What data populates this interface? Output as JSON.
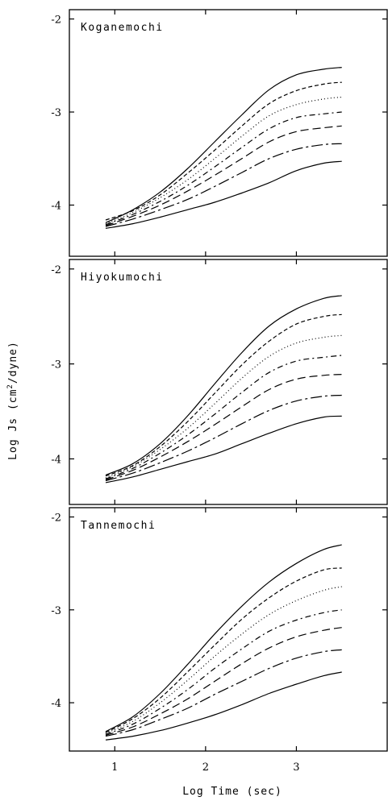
{
  "chart_data": [
    {
      "type": "line",
      "title": "Koganemochi",
      "xlabel": "Log Time (sec)",
      "ylabel": "Log Js (cm2/dyne)",
      "xlim": [
        0.5,
        4.0
      ],
      "ylim": [
        -4.55,
        -1.9
      ],
      "yticks": [
        -4,
        -3,
        -2
      ],
      "ytick_labels": [
        "-4",
        "-3",
        "-2"
      ],
      "xticks": [
        1,
        2,
        3
      ],
      "grid": false,
      "series": [
        {
          "dash": "",
          "x": [
            0.9,
            1.2,
            1.5,
            1.8,
            2.1,
            2.4,
            2.7,
            3.0,
            3.3,
            3.5
          ],
          "y": [
            -4.25,
            -4.2,
            -4.13,
            -4.05,
            -3.97,
            -3.87,
            -3.76,
            -3.63,
            -3.55,
            -3.53
          ]
        },
        {
          "dash": "14,4,3,4",
          "x": [
            0.9,
            1.2,
            1.5,
            1.8,
            2.1,
            2.4,
            2.7,
            3.0,
            3.3,
            3.5
          ],
          "y": [
            -4.23,
            -4.15,
            -4.05,
            -3.94,
            -3.8,
            -3.65,
            -3.5,
            -3.4,
            -3.35,
            -3.34
          ]
        },
        {
          "dash": "10,5",
          "x": [
            0.9,
            1.2,
            1.5,
            1.8,
            2.1,
            2.4,
            2.7,
            3.0,
            3.3,
            3.5
          ],
          "y": [
            -4.22,
            -4.12,
            -4.0,
            -3.85,
            -3.68,
            -3.5,
            -3.32,
            -3.21,
            -3.17,
            -3.15
          ]
        },
        {
          "dash": "7,4,2,4",
          "x": [
            0.9,
            1.2,
            1.5,
            1.8,
            2.1,
            2.4,
            2.7,
            3.0,
            3.3,
            3.5
          ],
          "y": [
            -4.21,
            -4.1,
            -3.96,
            -3.79,
            -3.59,
            -3.38,
            -3.18,
            -3.06,
            -3.02,
            -3.0
          ]
        },
        {
          "dash": "1,3",
          "x": [
            0.9,
            1.2,
            1.5,
            1.8,
            2.1,
            2.4,
            2.7,
            3.0,
            3.3,
            3.5
          ],
          "y": [
            -4.2,
            -4.08,
            -3.92,
            -3.73,
            -3.5,
            -3.26,
            -3.04,
            -2.92,
            -2.86,
            -2.84
          ]
        },
        {
          "dash": "5,3",
          "x": [
            0.9,
            1.2,
            1.5,
            1.8,
            2.1,
            2.4,
            2.7,
            3.0,
            3.3,
            3.5
          ],
          "y": [
            -4.16,
            -4.06,
            -3.89,
            -3.66,
            -3.41,
            -3.15,
            -2.91,
            -2.77,
            -2.7,
            -2.68
          ]
        },
        {
          "dash": "",
          "x": [
            0.9,
            1.2,
            1.5,
            1.8,
            2.1,
            2.4,
            2.7,
            3.0,
            3.3,
            3.5
          ],
          "y": [
            -4.19,
            -4.05,
            -3.86,
            -3.61,
            -3.32,
            -3.03,
            -2.76,
            -2.6,
            -2.54,
            -2.52
          ]
        }
      ]
    },
    {
      "type": "line",
      "title": "Hiyokumochi",
      "xlabel": "Log Time (sec)",
      "ylabel": "Log Js (cm2/dyne)",
      "xlim": [
        0.5,
        4.0
      ],
      "ylim": [
        -4.48,
        -1.9
      ],
      "yticks": [
        -4,
        -3,
        -2
      ],
      "ytick_labels": [
        "-4",
        "-3",
        "-2"
      ],
      "xticks": [
        1,
        2,
        3
      ],
      "grid": false,
      "series": [
        {
          "dash": "",
          "x": [
            0.9,
            1.2,
            1.5,
            1.8,
            2.1,
            2.4,
            2.7,
            3.0,
            3.3,
            3.5
          ],
          "y": [
            -4.25,
            -4.19,
            -4.11,
            -4.03,
            -3.95,
            -3.84,
            -3.73,
            -3.63,
            -3.56,
            -3.55
          ]
        },
        {
          "dash": "14,4,3,4",
          "x": [
            0.9,
            1.2,
            1.5,
            1.8,
            2.1,
            2.4,
            2.7,
            3.0,
            3.3,
            3.5
          ],
          "y": [
            -4.23,
            -4.15,
            -4.04,
            -3.92,
            -3.78,
            -3.63,
            -3.49,
            -3.39,
            -3.34,
            -3.33
          ]
        },
        {
          "dash": "10,5",
          "x": [
            0.9,
            1.2,
            1.5,
            1.8,
            2.1,
            2.4,
            2.7,
            3.0,
            3.3,
            3.5
          ],
          "y": [
            -4.22,
            -4.12,
            -3.98,
            -3.82,
            -3.64,
            -3.45,
            -3.27,
            -3.16,
            -3.12,
            -3.11
          ]
        },
        {
          "dash": "7,4,2,4",
          "x": [
            0.9,
            1.2,
            1.5,
            1.8,
            2.1,
            2.4,
            2.7,
            3.0,
            3.3,
            3.5
          ],
          "y": [
            -4.21,
            -4.1,
            -3.94,
            -3.75,
            -3.53,
            -3.3,
            -3.09,
            -2.97,
            -2.93,
            -2.91
          ]
        },
        {
          "dash": "1,3",
          "x": [
            0.9,
            1.2,
            1.5,
            1.8,
            2.1,
            2.4,
            2.7,
            3.0,
            3.3,
            3.5
          ],
          "y": [
            -4.2,
            -4.08,
            -3.9,
            -3.68,
            -3.42,
            -3.15,
            -2.92,
            -2.78,
            -2.72,
            -2.7
          ]
        },
        {
          "dash": "5,3",
          "x": [
            0.9,
            1.2,
            1.5,
            1.8,
            2.1,
            2.4,
            2.7,
            3.0,
            3.3,
            3.5
          ],
          "y": [
            -4.18,
            -4.07,
            -3.87,
            -3.61,
            -3.31,
            -3.01,
            -2.76,
            -2.58,
            -2.5,
            -2.48
          ]
        },
        {
          "dash": "",
          "x": [
            0.9,
            1.2,
            1.5,
            1.8,
            2.1,
            2.4,
            2.7,
            3.0,
            3.3,
            3.5
          ],
          "y": [
            -4.17,
            -4.05,
            -3.84,
            -3.55,
            -3.21,
            -2.88,
            -2.6,
            -2.42,
            -2.31,
            -2.28
          ]
        }
      ]
    },
    {
      "type": "line",
      "title": "Tannemochi",
      "xlabel": "Log Time (sec)",
      "ylabel": "Log Js (cm2/dyne)",
      "xlim": [
        0.5,
        4.0
      ],
      "ylim": [
        -4.52,
        -1.9
      ],
      "yticks": [
        -4,
        -3,
        -2
      ],
      "ytick_labels": [
        "-4",
        "-3",
        "-2"
      ],
      "xticks": [
        1,
        2,
        3
      ],
      "xtick_labels": [
        "1",
        "2",
        "3"
      ],
      "grid": false,
      "series": [
        {
          "dash": "",
          "x": [
            0.9,
            1.2,
            1.5,
            1.8,
            2.1,
            2.4,
            2.7,
            3.0,
            3.3,
            3.5
          ],
          "y": [
            -4.4,
            -4.36,
            -4.3,
            -4.22,
            -4.13,
            -4.02,
            -3.9,
            -3.8,
            -3.71,
            -3.67
          ]
        },
        {
          "dash": "14,4,3,4",
          "x": [
            0.9,
            1.2,
            1.5,
            1.8,
            2.1,
            2.4,
            2.7,
            3.0,
            3.3,
            3.5
          ],
          "y": [
            -4.36,
            -4.29,
            -4.18,
            -4.06,
            -3.91,
            -3.77,
            -3.63,
            -3.52,
            -3.45,
            -3.43
          ]
        },
        {
          "dash": "10,5",
          "x": [
            0.9,
            1.2,
            1.5,
            1.8,
            2.1,
            2.4,
            2.7,
            3.0,
            3.3,
            3.5
          ],
          "y": [
            -4.35,
            -4.26,
            -4.12,
            -3.96,
            -3.77,
            -3.58,
            -3.41,
            -3.29,
            -3.22,
            -3.19
          ]
        },
        {
          "dash": "7,4,2,4",
          "x": [
            0.9,
            1.2,
            1.5,
            1.8,
            2.1,
            2.4,
            2.7,
            3.0,
            3.3,
            3.5
          ],
          "y": [
            -4.34,
            -4.23,
            -4.06,
            -3.86,
            -3.63,
            -3.42,
            -3.23,
            -3.11,
            -3.03,
            -3.0
          ]
        },
        {
          "dash": "1,3",
          "x": [
            0.9,
            1.2,
            1.5,
            1.8,
            2.1,
            2.4,
            2.7,
            3.0,
            3.3,
            3.5
          ],
          "y": [
            -4.33,
            -4.2,
            -4.0,
            -3.76,
            -3.5,
            -3.26,
            -3.05,
            -2.9,
            -2.79,
            -2.75
          ]
        },
        {
          "dash": "5,3",
          "x": [
            0.9,
            1.2,
            1.5,
            1.8,
            2.1,
            2.4,
            2.7,
            3.0,
            3.3,
            3.5
          ],
          "y": [
            -4.32,
            -4.17,
            -3.95,
            -3.67,
            -3.38,
            -3.1,
            -2.87,
            -2.69,
            -2.57,
            -2.55
          ]
        },
        {
          "dash": "",
          "x": [
            0.9,
            1.2,
            1.5,
            1.8,
            2.1,
            2.4,
            2.7,
            3.0,
            3.3,
            3.5
          ],
          "y": [
            -4.31,
            -4.15,
            -3.9,
            -3.59,
            -3.26,
            -2.96,
            -2.7,
            -2.5,
            -2.35,
            -2.3
          ]
        }
      ]
    }
  ],
  "axes": {
    "xlabel": "Log Time (sec)",
    "ylabel_prefix": "Log Js (cm",
    "ylabel_sup": "2",
    "ylabel_suffix": "/dyne)"
  }
}
